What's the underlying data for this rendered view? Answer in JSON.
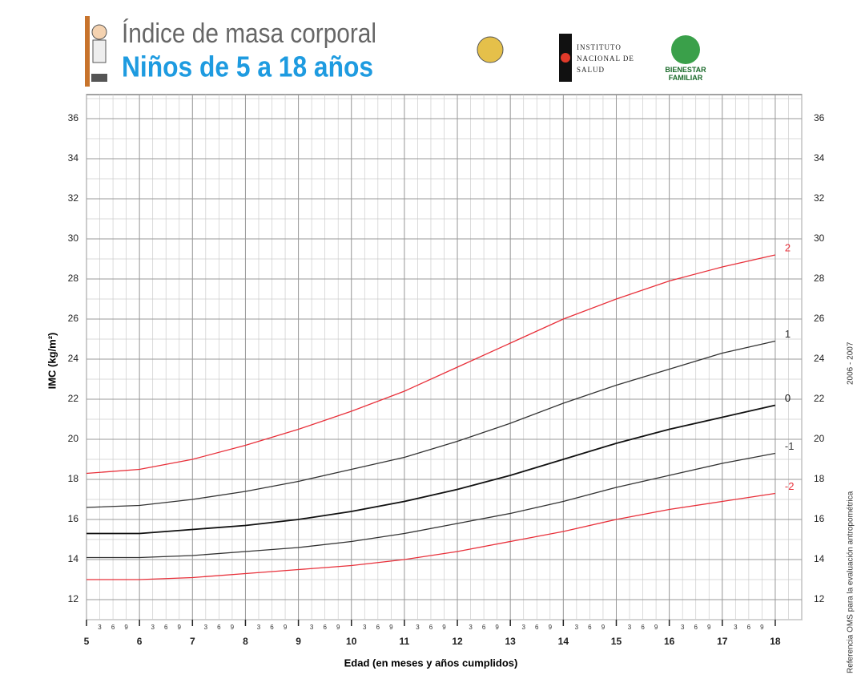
{
  "header": {
    "title": "Índice de masa corporal",
    "subtitle": "Niños de 5 a 18 años",
    "logo1": "Instituto Nacional de Salud",
    "logo2": "BIENESTAR FAMILIAR",
    "side_note": "Referencia OMS para la evaluación antropométrica",
    "side_years": "2006 - 2007"
  },
  "chart_data": {
    "type": "line",
    "x_label": "Edad (en meses y años cumplidos)",
    "y_label": "IMC (kg/m²)",
    "x": [
      5,
      6,
      7,
      8,
      9,
      10,
      11,
      12,
      13,
      14,
      15,
      16,
      17,
      18
    ],
    "xlim": [
      5,
      18.5
    ],
    "xticks": [
      5,
      6,
      7,
      8,
      9,
      10,
      11,
      12,
      13,
      14,
      15,
      16,
      17,
      18
    ],
    "month_ticks": [
      3,
      6,
      9
    ],
    "ylim": [
      11,
      37.2
    ],
    "yticks": [
      12,
      14,
      16,
      18,
      20,
      22,
      24,
      26,
      28,
      30,
      32,
      34,
      36
    ],
    "grid": true,
    "series": [
      {
        "name": "2",
        "color": "#e8303a",
        "values": [
          18.3,
          18.5,
          19.0,
          19.7,
          20.5,
          21.4,
          22.4,
          23.6,
          24.8,
          26.0,
          27.0,
          27.9,
          28.6,
          29.2
        ]
      },
      {
        "name": "1",
        "color": "#333333",
        "values": [
          16.6,
          16.7,
          17.0,
          17.4,
          17.9,
          18.5,
          19.1,
          19.9,
          20.8,
          21.8,
          22.7,
          23.5,
          24.3,
          24.9
        ]
      },
      {
        "name": "0",
        "color": "#111111",
        "values": [
          15.3,
          15.3,
          15.5,
          15.7,
          16.0,
          16.4,
          16.9,
          17.5,
          18.2,
          19.0,
          19.8,
          20.5,
          21.1,
          21.7
        ]
      },
      {
        "name": "-1",
        "color": "#333333",
        "values": [
          14.1,
          14.1,
          14.2,
          14.4,
          14.6,
          14.9,
          15.3,
          15.8,
          16.3,
          16.9,
          17.6,
          18.2,
          18.8,
          19.3
        ]
      },
      {
        "name": "-2",
        "color": "#e8303a",
        "values": [
          13.0,
          13.0,
          13.1,
          13.3,
          13.5,
          13.7,
          14.0,
          14.4,
          14.9,
          15.4,
          16.0,
          16.5,
          16.9,
          17.3
        ]
      }
    ]
  }
}
